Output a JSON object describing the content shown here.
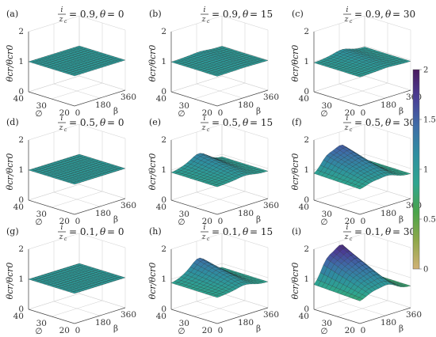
{
  "chart_data": {
    "type": "surface",
    "layout": "3x3 grid of 3D surface plots with shared colorbar on the right",
    "x_axis": {
      "label": "β",
      "ticks": [
        "0",
        "180",
        "360"
      ],
      "range": [
        0,
        360
      ]
    },
    "y_axis": {
      "label": "∅",
      "ticks": [
        "40",
        "30",
        "20"
      ],
      "range": [
        20,
        40
      ]
    },
    "z_axis": {
      "label": "θcr/θcr0",
      "ticks": [
        "0",
        "1",
        "2"
      ],
      "range": [
        0,
        2
      ]
    },
    "colorbar": {
      "ticks": [
        "0",
        "0.5",
        "1",
        "1.5",
        "2"
      ],
      "range": [
        0,
        2
      ],
      "colors": [
        "#d1b175",
        "#8fa84a",
        "#4aa44a",
        "#2ea58f",
        "#2e8fa0",
        "#3e6ea8",
        "#4a3f96",
        "#4a1a5e"
      ]
    },
    "panels": [
      {
        "label": "(a)",
        "ratio": "0.9",
        "theta": "0",
        "num": "i",
        "den": "z",
        "den_sub": "c",
        "surface_level": 1.0,
        "peak_height": 0.0
      },
      {
        "label": "(b)",
        "ratio": "0.9",
        "theta": "15",
        "num": "i",
        "den": "z",
        "den_sub": "c",
        "surface_level": 1.0,
        "peak_height": 0.05
      },
      {
        "label": "(c)",
        "ratio": "0.9",
        "theta": "30",
        "num": "i",
        "den": "z",
        "den_sub": "c",
        "surface_level": 1.0,
        "peak_height": 0.15
      },
      {
        "label": "(d)",
        "ratio": "0.5",
        "theta": "0",
        "num": "i",
        "den": "z",
        "den_sub": "c",
        "surface_level": 1.0,
        "peak_height": 0.0
      },
      {
        "label": "(e)",
        "ratio": "0.5",
        "theta": "15",
        "num": "i",
        "den": "z",
        "den_sub": "c",
        "surface_level": 1.0,
        "peak_height": 0.35
      },
      {
        "label": "(f)",
        "ratio": "0.5",
        "theta": "30",
        "num": "i",
        "den": "z",
        "den_sub": "c",
        "surface_level": 1.0,
        "peak_height": 0.7
      },
      {
        "label": "(g)",
        "ratio": "0.1",
        "theta": "0",
        "num": "i",
        "den": "z",
        "den_sub": "c",
        "surface_level": 1.0,
        "peak_height": 0.0
      },
      {
        "label": "(h)",
        "ratio": "0.1",
        "theta": "15",
        "num": "i",
        "den": "z",
        "den_sub": "c",
        "surface_level": 1.0,
        "peak_height": 0.55
      },
      {
        "label": "(i)",
        "ratio": "0.1",
        "theta": "30",
        "num": "i",
        "den": "z",
        "den_sub": "c",
        "surface_level": 1.0,
        "peak_height": 1.1
      }
    ]
  }
}
